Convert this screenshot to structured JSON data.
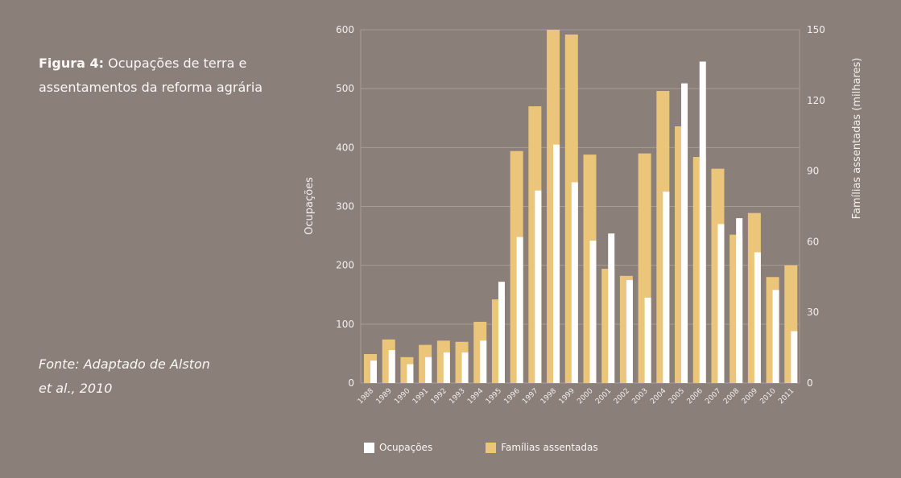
{
  "caption": {
    "label": "Figura 4:",
    "text": "Ocupações de terra e assentamentos da reforma agrária"
  },
  "source": {
    "text": "Fonte: Adaptado de Alston et al., 2010"
  },
  "colors": {
    "background": "#8a7f79",
    "occupations": "#ffffff",
    "families": "#ebc67a",
    "grid": "#a79d96"
  },
  "chart_data": {
    "type": "bar",
    "title": "Ocupações de terra e assentamentos da reforma agrária",
    "categories": [
      "1988",
      "1989",
      "1990",
      "1991",
      "1992",
      "1993",
      "1994",
      "1995",
      "1996",
      "1997",
      "1998",
      "1999",
      "2000",
      "2001",
      "2002",
      "2003",
      "2004",
      "2005",
      "2006",
      "2007",
      "2008",
      "2009",
      "2010",
      "2011"
    ],
    "ylabel": "Ocupações",
    "y2label": "Famílias assentadas (milhares)",
    "ylim": [
      0,
      600
    ],
    "y2lim": [
      0,
      150
    ],
    "yticks": [
      0,
      100,
      200,
      300,
      400,
      500,
      600
    ],
    "y2ticks": [
      0,
      30,
      60,
      90,
      120,
      150
    ],
    "grid": true,
    "series": [
      {
        "name": "Famílias assentadas",
        "axis": "right",
        "values": [
          12.3,
          18.5,
          11,
          16.2,
          18,
          17.5,
          26,
          35.5,
          98.5,
          117.5,
          150,
          148,
          97,
          48.5,
          45.5,
          97.5,
          124,
          109,
          96,
          91,
          63,
          72.2,
          45,
          50
        ]
      },
      {
        "name": "Ocupações",
        "axis": "left",
        "values": [
          38,
          56,
          32,
          44,
          52,
          52,
          72,
          172,
          248,
          327,
          405,
          341,
          242,
          254,
          175,
          145,
          325,
          509,
          546,
          270,
          280,
          222,
          158,
          88
        ]
      }
    ],
    "legend": [
      {
        "label": "Ocupações",
        "color": "#ffffff"
      },
      {
        "label": "Famílias assentadas",
        "color": "#ebc67a"
      }
    ]
  }
}
